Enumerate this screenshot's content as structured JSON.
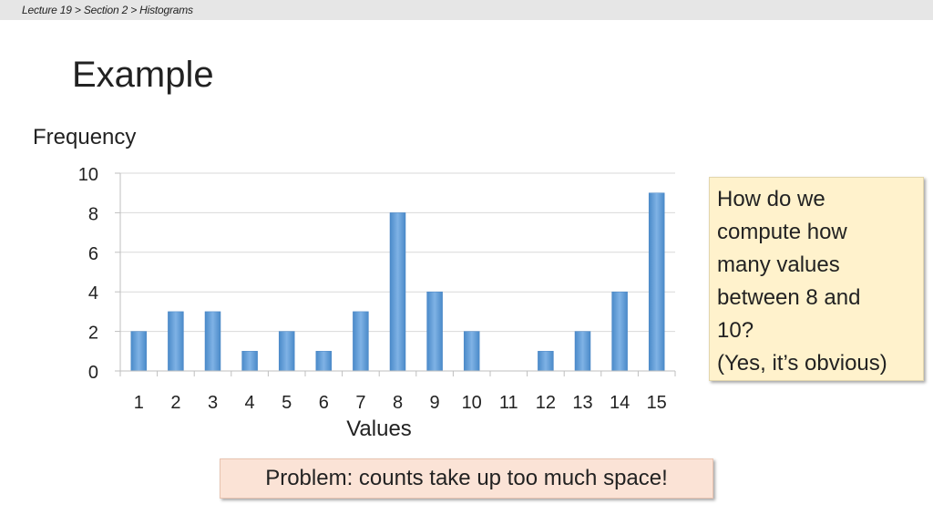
{
  "breadcrumb": {
    "items": [
      "Lecture 19",
      "Section 2",
      "Histograms"
    ],
    "separator": ">"
  },
  "slide": {
    "title": "Example"
  },
  "callout": {
    "text": "How do we\ncompute how\nmany values\nbetween 8 and\n10?\n(Yes, it’s obvious)"
  },
  "problem_box": {
    "text": "Problem: counts take up too much space!"
  },
  "chart_data": {
    "type": "bar",
    "title": "",
    "xlabel": "Values",
    "ylabel": "Frequency",
    "categories": [
      "1",
      "2",
      "3",
      "4",
      "5",
      "6",
      "7",
      "8",
      "9",
      "10",
      "11",
      "12",
      "13",
      "14",
      "15"
    ],
    "values": [
      2,
      3,
      3,
      1,
      2,
      1,
      3,
      8,
      4,
      2,
      0,
      1,
      2,
      4,
      9
    ],
    "ylim": [
      0,
      10
    ],
    "yticks": [
      0,
      2,
      4,
      6,
      8,
      10
    ],
    "grid": true,
    "legend": "none",
    "bar_color": "#5b9bd5"
  }
}
